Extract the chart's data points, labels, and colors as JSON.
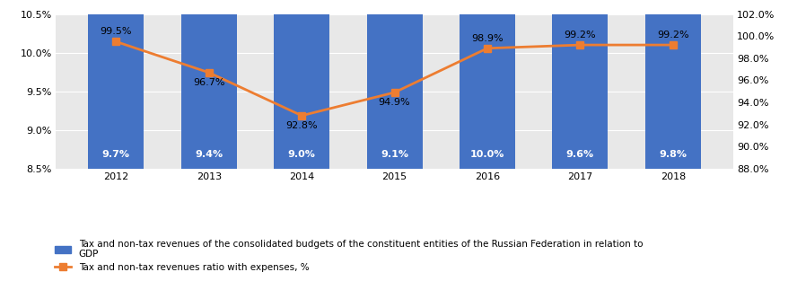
{
  "years": [
    2012,
    2013,
    2014,
    2015,
    2016,
    2017,
    2018
  ],
  "bar_values": [
    9.7,
    9.4,
    9.0,
    9.1,
    10.0,
    9.6,
    9.8
  ],
  "line_values": [
    99.5,
    96.7,
    92.8,
    94.9,
    98.9,
    99.2,
    99.2
  ],
  "bar_color": "#4472C4",
  "line_color": "#ED7D31",
  "left_ylim": [
    8.5,
    10.5
  ],
  "right_ylim": [
    88.0,
    102.0
  ],
  "left_yticks": [
    8.5,
    9.0,
    9.5,
    10.0,
    10.5
  ],
  "right_yticks": [
    88.0,
    90.0,
    92.0,
    94.0,
    96.0,
    98.0,
    100.0,
    102.0
  ],
  "left_ytick_labels": [
    "8.5%",
    "9.0%",
    "9.5%",
    "10.0%",
    "10.5%"
  ],
  "right_ytick_labels": [
    "88.0%",
    "90.0%",
    "92.0%",
    "94.0%",
    "96.0%",
    "98.0%",
    "100.0%",
    "102.0%"
  ],
  "legend_bar_label": "Tax and non-tax revenues of the consolidated budgets of the constituent entities of the Russian Federation in relation to\nGDP",
  "legend_line_label": "Tax and non-tax revenues ratio with expenses, %",
  "background_color": "#E8E8E8",
  "bar_width": 0.6,
  "marker_style": "s",
  "marker_size": 6,
  "line_width": 2.0,
  "line_label_offsets": [
    1,
    -1,
    -1,
    -1,
    1,
    1,
    1
  ],
  "bar_fontsize": 8,
  "line_fontsize": 8,
  "tick_fontsize": 8,
  "legend_fontsize": 7.5
}
